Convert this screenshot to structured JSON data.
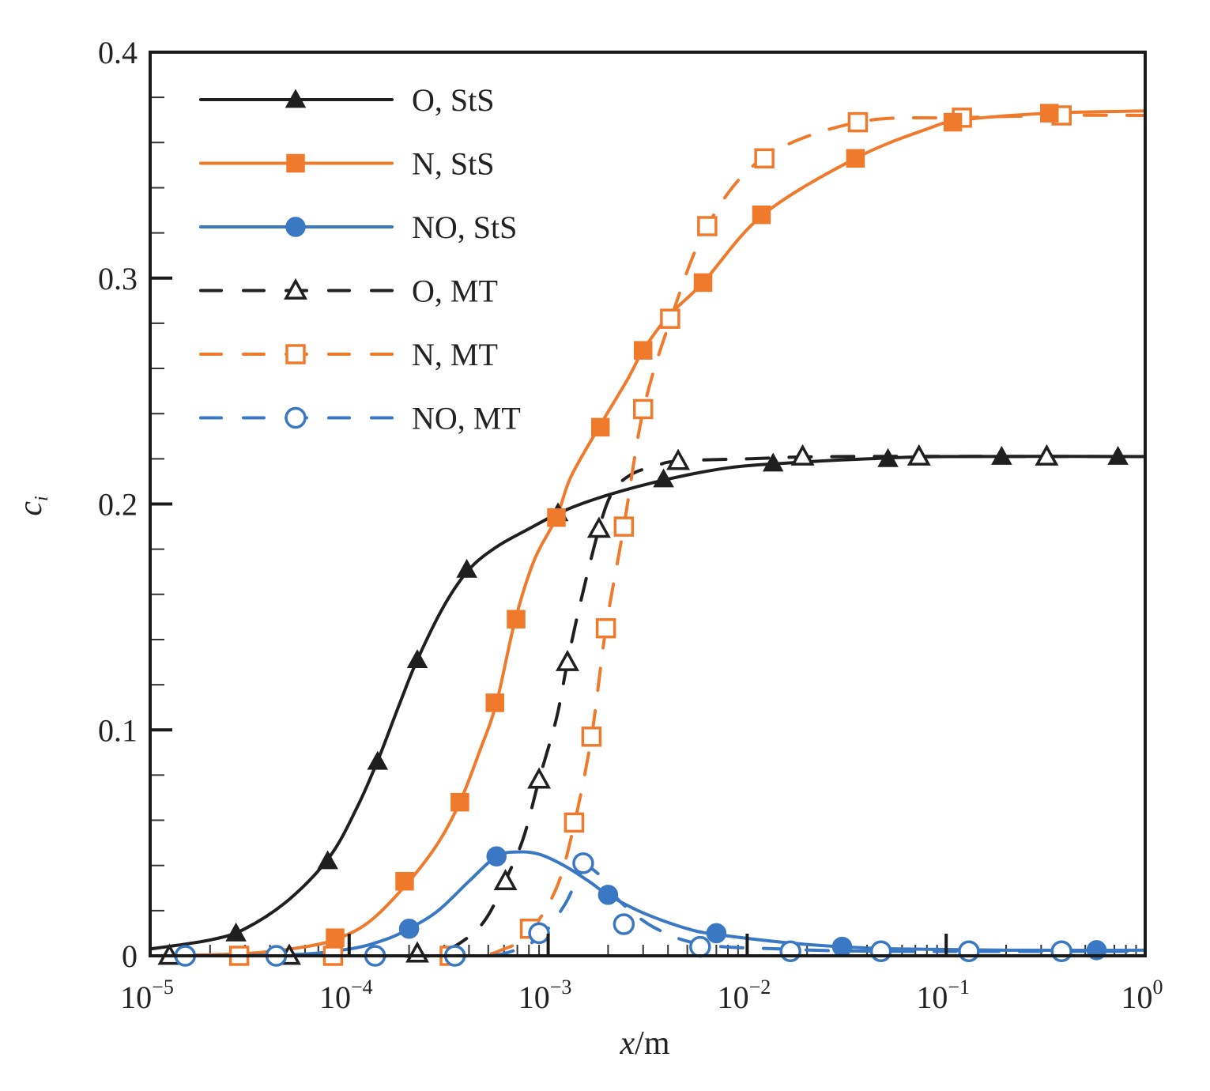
{
  "chart_data": {
    "type": "line",
    "title": "",
    "xlabel_italic": "x",
    "xlabel_unit": "/m",
    "ylabel_main": "c",
    "ylabel_sub": "i",
    "xscale": "log",
    "xlim": [
      1e-05,
      1
    ],
    "ylim": [
      0,
      0.4
    ],
    "grid": false,
    "legend_position": "top-left",
    "x_ticks": [
      {
        "base": "10",
        "exp": "−5",
        "value": 1e-05
      },
      {
        "base": "10",
        "exp": "−4",
        "value": 0.0001
      },
      {
        "base": "10",
        "exp": "−3",
        "value": 0.001
      },
      {
        "base": "10",
        "exp": "−2",
        "value": 0.01
      },
      {
        "base": "10",
        "exp": "−1",
        "value": 0.1
      },
      {
        "base": "10",
        "exp": "0",
        "value": 1
      }
    ],
    "y_ticks": [
      {
        "label": "0",
        "value": 0
      },
      {
        "label": "0.1",
        "value": 0.1
      },
      {
        "label": "0.2",
        "value": 0.2
      },
      {
        "label": "0.3",
        "value": 0.3
      },
      {
        "label": "0.4",
        "value": 0.4
      }
    ],
    "y_minor_step": 0.02,
    "series": [
      {
        "name": "O, StS",
        "color": "#1f1f1f",
        "dash": "solid",
        "marker": "triangle",
        "marker_fill": "filled",
        "curve": [
          [
            1e-05,
            0.003
          ],
          [
            2e-05,
            0.007
          ],
          [
            3e-05,
            0.012
          ],
          [
            5e-05,
            0.025
          ],
          [
            8e-05,
            0.044
          ],
          [
            0.00011,
            0.066
          ],
          [
            0.00014,
            0.087
          ],
          [
            0.00018,
            0.112
          ],
          [
            0.00022,
            0.131
          ],
          [
            0.0003,
            0.155
          ],
          [
            0.0004,
            0.171
          ],
          [
            0.00055,
            0.181
          ],
          [
            0.0008,
            0.189
          ],
          [
            0.0012,
            0.197
          ],
          [
            0.002,
            0.204
          ],
          [
            0.004,
            0.211
          ],
          [
            0.008,
            0.216
          ],
          [
            0.015,
            0.218
          ],
          [
            0.04,
            0.22
          ],
          [
            0.1,
            0.221
          ],
          [
            1,
            0.221
          ]
        ],
        "markers": [
          [
            2.7e-05,
            0.01
          ],
          [
            7.8e-05,
            0.042
          ],
          [
            0.000139,
            0.086
          ],
          [
            0.00022,
            0.131
          ],
          [
            0.00039,
            0.171
          ],
          [
            0.00112,
            0.196
          ],
          [
            0.0038,
            0.211
          ],
          [
            0.0135,
            0.218
          ],
          [
            0.051,
            0.22
          ],
          [
            0.19,
            0.221
          ],
          [
            0.73,
            0.221
          ]
        ]
      },
      {
        "name": "N, StS",
        "color": "#f07a2c",
        "dash": "solid",
        "marker": "square",
        "marker_fill": "filled",
        "curve": [
          [
            1e-05,
            0.0
          ],
          [
            3e-05,
            0.001
          ],
          [
            6e-05,
            0.004
          ],
          [
            9e-05,
            0.008
          ],
          [
            0.00013,
            0.016
          ],
          [
            0.0002,
            0.033
          ],
          [
            0.00028,
            0.05
          ],
          [
            0.00036,
            0.068
          ],
          [
            0.00045,
            0.09
          ],
          [
            0.00055,
            0.112
          ],
          [
            0.00068,
            0.148
          ],
          [
            0.00085,
            0.175
          ],
          [
            0.0011,
            0.194
          ],
          [
            0.0013,
            0.212
          ],
          [
            0.0018,
            0.234
          ],
          [
            0.0025,
            0.255
          ],
          [
            0.003,
            0.268
          ],
          [
            0.004,
            0.283
          ],
          [
            0.006,
            0.298
          ],
          [
            0.012,
            0.328
          ],
          [
            0.035,
            0.353
          ],
          [
            0.08,
            0.366
          ],
          [
            0.12,
            0.37
          ],
          [
            0.33,
            0.373
          ],
          [
            1,
            0.374
          ]
        ],
        "markers": [
          [
            8.5e-05,
            0.008
          ],
          [
            0.00019,
            0.033
          ],
          [
            0.00036,
            0.068
          ],
          [
            0.00054,
            0.112
          ],
          [
            0.00069,
            0.149
          ],
          [
            0.0011,
            0.194
          ],
          [
            0.00183,
            0.234
          ],
          [
            0.003,
            0.268
          ],
          [
            0.006,
            0.298
          ],
          [
            0.0118,
            0.328
          ],
          [
            0.035,
            0.353
          ],
          [
            0.108,
            0.369
          ],
          [
            0.33,
            0.373
          ]
        ]
      },
      {
        "name": "NO, StS",
        "color": "#3a78c3",
        "dash": "solid",
        "marker": "circle",
        "marker_fill": "filled",
        "curve": [
          [
            1e-05,
            0.0
          ],
          [
            5e-05,
            0.0005
          ],
          [
            0.0001,
            0.003
          ],
          [
            0.00015,
            0.007
          ],
          [
            0.0002,
            0.012
          ],
          [
            0.00028,
            0.02
          ],
          [
            0.0004,
            0.033
          ],
          [
            0.00055,
            0.044
          ],
          [
            0.0007,
            0.046
          ],
          [
            0.0009,
            0.045
          ],
          [
            0.0012,
            0.04
          ],
          [
            0.0016,
            0.033
          ],
          [
            0.002,
            0.027
          ],
          [
            0.003,
            0.019
          ],
          [
            0.005,
            0.012
          ],
          [
            0.007,
            0.0095
          ],
          [
            0.015,
            0.006
          ],
          [
            0.03,
            0.004
          ],
          [
            0.06,
            0.003
          ],
          [
            0.2,
            0.0025
          ],
          [
            1,
            0.0025
          ]
        ],
        "markers": [
          [
            0.0002,
            0.012
          ],
          [
            0.00055,
            0.044
          ],
          [
            0.002,
            0.027
          ],
          [
            0.007,
            0.01
          ],
          [
            0.03,
            0.004
          ],
          [
            0.57,
            0.0025
          ]
        ]
      },
      {
        "name": "O, MT",
        "color": "#1f1f1f",
        "dash": "dashed",
        "marker": "triangle",
        "marker_fill": "open",
        "curve": [
          [
            1e-05,
            0.0
          ],
          [
            0.0001,
            0.0
          ],
          [
            0.00025,
            0.0
          ],
          [
            0.00032,
            0.003
          ],
          [
            0.00042,
            0.01
          ],
          [
            0.0005,
            0.018
          ],
          [
            0.0006,
            0.032
          ],
          [
            0.00075,
            0.052
          ],
          [
            0.0009,
            0.078
          ],
          [
            0.0011,
            0.105
          ],
          [
            0.00125,
            0.13
          ],
          [
            0.00145,
            0.156
          ],
          [
            0.0018,
            0.189
          ],
          [
            0.0021,
            0.205
          ],
          [
            0.0026,
            0.213
          ],
          [
            0.0035,
            0.217
          ],
          [
            0.0045,
            0.219
          ],
          [
            0.01,
            0.22
          ],
          [
            0.03,
            0.221
          ],
          [
            1,
            0.221
          ]
        ],
        "markers": [
          [
            1.25e-05,
            0.0
          ],
          [
            5e-05,
            0.0
          ],
          [
            0.00022,
            0.001
          ],
          [
            0.00061,
            0.033
          ],
          [
            0.0009,
            0.078
          ],
          [
            0.00125,
            0.13
          ],
          [
            0.0018,
            0.189
          ],
          [
            0.0045,
            0.219
          ],
          [
            0.019,
            0.221
          ],
          [
            0.073,
            0.221
          ],
          [
            0.32,
            0.221
          ]
        ]
      },
      {
        "name": "N, MT",
        "color": "#f07a2c",
        "dash": "dashed",
        "marker": "square",
        "marker_fill": "open",
        "curve": [
          [
            1e-05,
            0.0
          ],
          [
            0.0001,
            0.0
          ],
          [
            0.0004,
            0.0
          ],
          [
            0.0006,
            0.003
          ],
          [
            0.0008,
            0.01
          ],
          [
            0.0011,
            0.03
          ],
          [
            0.00135,
            0.058
          ],
          [
            0.00165,
            0.097
          ],
          [
            0.00195,
            0.145
          ],
          [
            0.0024,
            0.19
          ],
          [
            0.003,
            0.241
          ],
          [
            0.0041,
            0.281
          ],
          [
            0.0063,
            0.323
          ],
          [
            0.012,
            0.353
          ],
          [
            0.036,
            0.369
          ],
          [
            0.12,
            0.371
          ],
          [
            0.38,
            0.372
          ],
          [
            1,
            0.372
          ]
        ],
        "markers": [
          [
            2.8e-05,
            0.0
          ],
          [
            8.3e-05,
            0.0
          ],
          [
            0.00032,
            0.0
          ],
          [
            0.00081,
            0.012
          ],
          [
            0.00135,
            0.059
          ],
          [
            0.00165,
            0.097
          ],
          [
            0.00195,
            0.145
          ],
          [
            0.0024,
            0.19
          ],
          [
            0.003,
            0.242
          ],
          [
            0.0041,
            0.282
          ],
          [
            0.0063,
            0.323
          ],
          [
            0.0122,
            0.353
          ],
          [
            0.036,
            0.369
          ],
          [
            0.12,
            0.371
          ],
          [
            0.38,
            0.372
          ]
        ]
      },
      {
        "name": "NO, MT",
        "color": "#3a78c3",
        "dash": "dashed",
        "marker": "circle",
        "marker_fill": "open",
        "curve": [
          [
            1e-05,
            0.0
          ],
          [
            0.0001,
            0.0
          ],
          [
            0.0004,
            0.0
          ],
          [
            0.0006,
            0.001
          ],
          [
            0.0009,
            0.008
          ],
          [
            0.0012,
            0.022
          ],
          [
            0.0015,
            0.038
          ],
          [
            0.0018,
            0.036
          ],
          [
            0.0023,
            0.024
          ],
          [
            0.0035,
            0.012
          ],
          [
            0.006,
            0.005
          ],
          [
            0.015,
            0.003
          ],
          [
            0.05,
            0.002
          ],
          [
            1,
            0.002
          ]
        ],
        "markers": [
          [
            1.5e-05,
            0.0
          ],
          [
            4.3e-05,
            0.0
          ],
          [
            0.000135,
            0.0
          ],
          [
            0.00034,
            0.0
          ],
          [
            0.0009,
            0.01
          ],
          [
            0.0015,
            0.041
          ],
          [
            0.0024,
            0.014
          ],
          [
            0.0058,
            0.004
          ],
          [
            0.0165,
            0.002
          ],
          [
            0.047,
            0.002
          ],
          [
            0.13,
            0.002
          ],
          [
            0.38,
            0.002
          ]
        ]
      }
    ]
  }
}
